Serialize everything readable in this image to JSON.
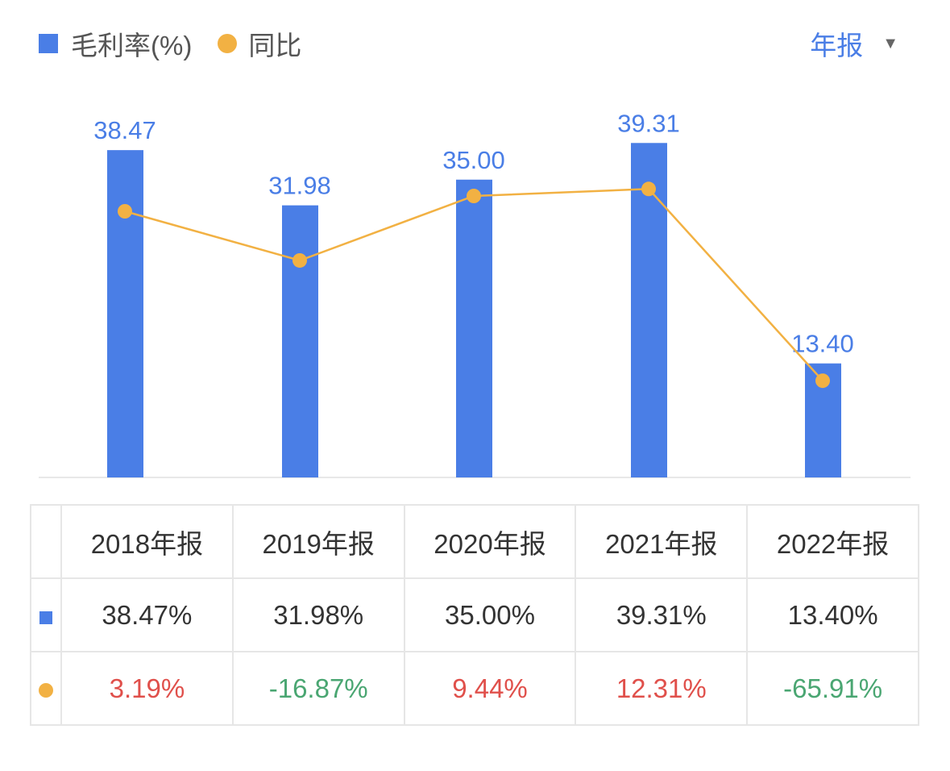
{
  "legend": {
    "bar_label": "毛利率(%)",
    "line_label": "同比"
  },
  "period_select": {
    "value": "年报",
    "icon": "caret-down-icon"
  },
  "colors": {
    "bar": "#4a7ee6",
    "line": "#f2b143",
    "positive": "#e0504b",
    "negative": "#4aa672"
  },
  "chart_data": {
    "type": "bar+line",
    "categories": [
      "2018年报",
      "2019年报",
      "2020年报",
      "2021年报",
      "2022年报"
    ],
    "series": [
      {
        "name": "毛利率(%)",
        "type": "bar",
        "values": [
          38.47,
          31.98,
          35.0,
          39.31,
          13.4
        ],
        "labels": [
          "38.47",
          "31.98",
          "35.00",
          "39.31",
          "13.40"
        ]
      },
      {
        "name": "同比",
        "type": "line",
        "values": [
          3.19,
          -16.87,
          9.44,
          12.31,
          -65.91
        ]
      }
    ],
    "grid": false,
    "legend": "top-left"
  },
  "table": {
    "headers": [
      "2018年报",
      "2019年报",
      "2020年报",
      "2021年报",
      "2022年报"
    ],
    "bar_row": [
      "38.47%",
      "31.98%",
      "35.00%",
      "39.31%",
      "13.40%"
    ],
    "line_row": [
      "3.19%",
      "-16.87%",
      "9.44%",
      "12.31%",
      "-65.91%"
    ]
  }
}
